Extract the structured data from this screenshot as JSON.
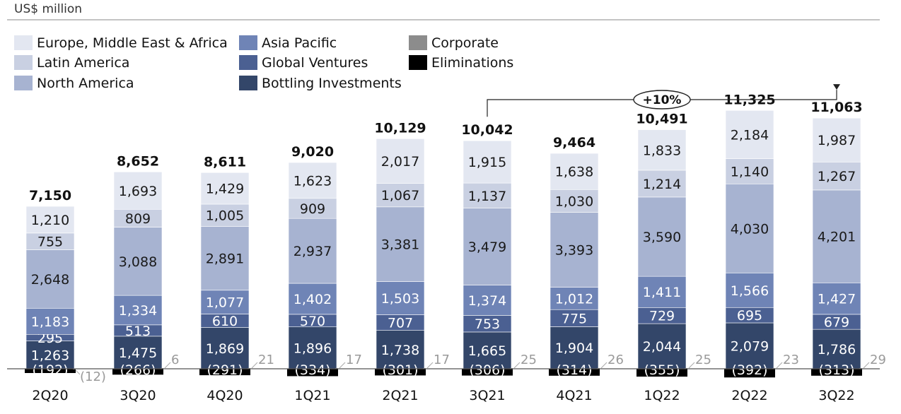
{
  "chart_data": {
    "type": "bar",
    "subtitle": "US$ million",
    "categories": [
      "2Q20",
      "3Q20",
      "4Q20",
      "1Q21",
      "2Q21",
      "3Q21",
      "4Q21",
      "1Q22",
      "2Q22",
      "3Q22"
    ],
    "totals": [
      "7,150",
      "8,652",
      "8,611",
      "9,020",
      "10,129",
      "10,042",
      "9,464",
      "10,491",
      "11,325",
      "11,063"
    ],
    "series": [
      {
        "name": "Bottling Investments",
        "color": "#334669",
        "text_color": "#ffffff",
        "values": [
          1263,
          1475,
          1869,
          1896,
          1738,
          1665,
          1904,
          2044,
          2079,
          1786
        ],
        "labels": [
          "1,263",
          "1,475",
          "1,869",
          "1,896",
          "1,738",
          "1,665",
          "1,904",
          "2,044",
          "2,079",
          "1,786"
        ]
      },
      {
        "name": "Global Ventures",
        "color": "#4b6092",
        "text_color": "#ffffff",
        "values": [
          295,
          513,
          610,
          570,
          707,
          753,
          775,
          729,
          695,
          679
        ],
        "labels": [
          "295",
          "513",
          "610",
          "570",
          "707",
          "753",
          "775",
          "729",
          "695",
          "679"
        ]
      },
      {
        "name": "Asia Pacific",
        "color": "#6f84b6",
        "text_color": "#ffffff",
        "values": [
          1183,
          1334,
          1077,
          1402,
          1503,
          1374,
          1012,
          1411,
          1566,
          1427
        ],
        "labels": [
          "1,183",
          "1,334",
          "1,077",
          "1,402",
          "1,503",
          "1,374",
          "1,012",
          "1,411",
          "1,566",
          "1,427"
        ]
      },
      {
        "name": "North America",
        "color": "#a7b3d1",
        "text_color": "#1a1a1a",
        "values": [
          2648,
          3088,
          2891,
          2937,
          3381,
          3479,
          3393,
          3590,
          4030,
          4201
        ],
        "labels": [
          "2,648",
          "3,088",
          "2,891",
          "2,937",
          "3,381",
          "3,479",
          "3,393",
          "3,590",
          "4,030",
          "4,201"
        ]
      },
      {
        "name": "Latin America",
        "color": "#c9d0e2",
        "text_color": "#1a1a1a",
        "values": [
          755,
          809,
          1005,
          909,
          1067,
          1137,
          1030,
          1214,
          1140,
          1267
        ],
        "labels": [
          "755",
          "809",
          "1,005",
          "909",
          "1,067",
          "1,137",
          "1,030",
          "1,214",
          "1,140",
          "1,267"
        ]
      },
      {
        "name": "Europe, Middle East & Africa",
        "color": "#e3e7f1",
        "text_color": "#1a1a1a",
        "values": [
          1210,
          1693,
          1429,
          1623,
          2017,
          1915,
          1638,
          1833,
          2184,
          1987
        ],
        "labels": [
          "1,210",
          "1,693",
          "1,429",
          "1,623",
          "2,017",
          "1,915",
          "1,638",
          "1,833",
          "2,184",
          "1,987"
        ]
      },
      {
        "name": "Corporate",
        "color": "#8c8c8c",
        "text_color": "#9a9a9a",
        "values": [
          -12,
          6,
          21,
          17,
          17,
          25,
          26,
          25,
          23,
          29
        ],
        "labels": [
          "(12)",
          "6",
          "21",
          "17",
          "17",
          "25",
          "26",
          "25",
          "23",
          "29"
        ]
      },
      {
        "name": "Eliminations",
        "color": "#000000",
        "text_color": "#ffffff",
        "values": [
          -192,
          -266,
          -291,
          -334,
          -301,
          -306,
          -314,
          -355,
          -392,
          -313
        ],
        "labels": [
          "(192)",
          "(266)",
          "(291)",
          "(334)",
          "(301)",
          "(306)",
          "(314)",
          "(355)",
          "(392)",
          "(313)"
        ]
      }
    ],
    "legend_columns": [
      [
        "Europe, Middle East & Africa",
        "Latin America",
        "North America"
      ],
      [
        "Asia Pacific",
        "Global Ventures",
        "Bottling Investments"
      ],
      [
        "Corporate",
        "Eliminations"
      ]
    ],
    "annotation": {
      "text": "+10%",
      "from": "3Q21",
      "to": "3Q22"
    },
    "ylim": [
      -400,
      11500
    ]
  }
}
